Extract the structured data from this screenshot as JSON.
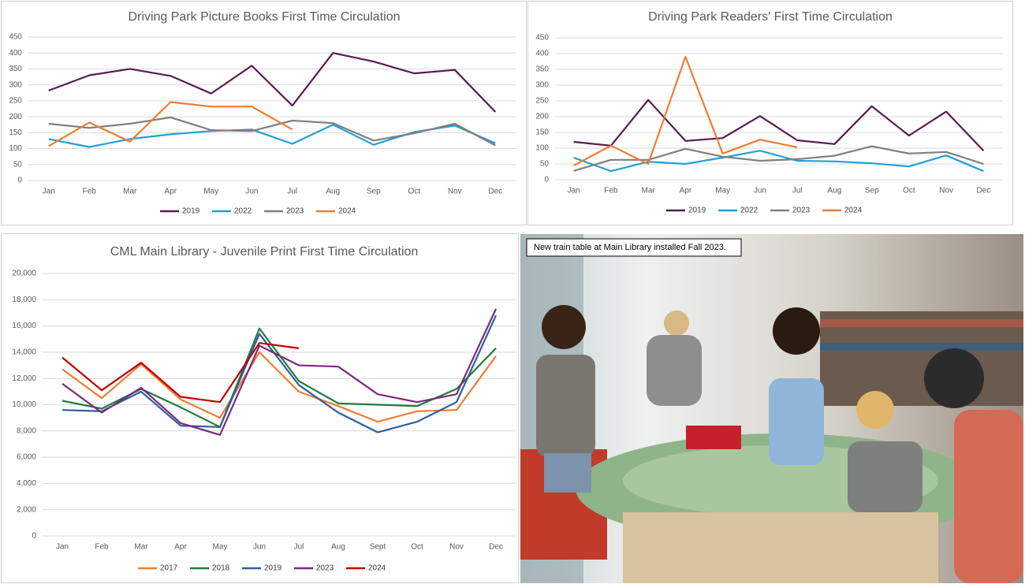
{
  "chart_data": [
    {
      "type": "line",
      "title": "Driving Park Picture Books First Time Circulation",
      "categories": [
        "Jan",
        "Feb",
        "Mar",
        "Apr",
        "May",
        "Jun",
        "Jul",
        "Aug",
        "Sep",
        "Oct",
        "Nov",
        "Dec"
      ],
      "ylim": [
        0,
        450
      ],
      "yticks": [
        0,
        50,
        100,
        150,
        200,
        250,
        300,
        350,
        400,
        450
      ],
      "grid": true,
      "legend": "bottom",
      "series": [
        {
          "name": "2019",
          "color": "#5b1a50",
          "values": [
            282,
            330,
            350,
            328,
            273,
            360,
            235,
            400,
            373,
            336,
            347,
            215
          ]
        },
        {
          "name": "2022",
          "color": "#1fa0d8",
          "values": [
            130,
            105,
            130,
            145,
            155,
            160,
            115,
            175,
            112,
            152,
            172,
            117
          ]
        },
        {
          "name": "2023",
          "color": "#7f7f7f",
          "values": [
            178,
            165,
            178,
            198,
            158,
            155,
            188,
            180,
            125,
            148,
            178,
            110
          ]
        },
        {
          "name": "2024",
          "color": "#ed7d31",
          "values": [
            108,
            182,
            122,
            246,
            232,
            232,
            160,
            null,
            null,
            null,
            null,
            null
          ]
        }
      ]
    },
    {
      "type": "line",
      "title": "Driving Park Readers' First Time Circulation",
      "categories": [
        "Jan",
        "Feb",
        "Mar",
        "Apr",
        "May",
        "Jun",
        "Jul",
        "Aug",
        "Sep",
        "Oct",
        "Nov",
        "Dec"
      ],
      "ylim": [
        0,
        450
      ],
      "yticks": [
        0,
        50,
        100,
        150,
        200,
        250,
        300,
        350,
        400,
        450
      ],
      "grid": true,
      "legend": "bottom",
      "series": [
        {
          "name": "2019",
          "color": "#5b1a50",
          "values": [
            120,
            108,
            253,
            123,
            132,
            202,
            125,
            113,
            233,
            140,
            216,
            92
          ]
        },
        {
          "name": "2022",
          "color": "#1fa0d8",
          "values": [
            70,
            27,
            57,
            50,
            70,
            92,
            60,
            58,
            52,
            42,
            77,
            27
          ]
        },
        {
          "name": "2023",
          "color": "#7f7f7f",
          "values": [
            28,
            63,
            63,
            98,
            73,
            60,
            65,
            76,
            106,
            83,
            88,
            50
          ]
        },
        {
          "name": "2024",
          "color": "#ed7d31",
          "values": [
            45,
            108,
            50,
            390,
            83,
            127,
            103,
            null,
            null,
            null,
            null,
            null
          ]
        }
      ]
    },
    {
      "type": "line",
      "title": "CML Main Library -   Juvenile Print First Time Circulation",
      "categories": [
        "Jan",
        "Feb",
        "Mar",
        "Apr",
        "May",
        "Jun",
        "Jul",
        "Aug",
        "Sept",
        "Oct",
        "Nov",
        "Dec"
      ],
      "ylim": [
        0,
        20000
      ],
      "yticks": [
        0,
        {
          "value": 2000,
          "label": "2,000"
        },
        {
          "value": 4000,
          "label": "4,000"
        },
        {
          "value": 6000,
          "label": "6,000"
        },
        {
          "value": 8000,
          "label": "8,000"
        },
        {
          "value": 10000,
          "label": "10,000"
        },
        {
          "value": 12000,
          "label": "12,000"
        },
        {
          "value": 14000,
          "label": "14,000"
        },
        {
          "value": 16000,
          "label": "16,000"
        },
        {
          "value": 18000,
          "label": "18,000"
        },
        {
          "value": 20000,
          "label": "20,000"
        }
      ],
      "grid": true,
      "legend": "bottom",
      "series": [
        {
          "name": "2017",
          "color": "#ed7d31",
          "values": [
            12700,
            10500,
            13100,
            10400,
            9000,
            14000,
            11000,
            9900,
            8700,
            9500,
            9600,
            13700
          ]
        },
        {
          "name": "2018",
          "color": "#217a3a",
          "values": [
            10300,
            9700,
            11200,
            9800,
            8300,
            15800,
            11800,
            10100,
            10000,
            9900,
            11200,
            14300
          ]
        },
        {
          "name": "2019",
          "color": "#2e5e9e",
          "values": [
            9600,
            9500,
            11000,
            8400,
            8300,
            15400,
            11500,
            9400,
            7900,
            8700,
            10200,
            16800
          ]
        },
        {
          "name": "2023",
          "color": "#7b2a7e",
          "values": [
            11600,
            9400,
            11300,
            8600,
            7700,
            14500,
            13000,
            12900,
            10800,
            10200,
            10800,
            17300
          ]
        },
        {
          "name": "2024",
          "color": "#c00000",
          "values": [
            13600,
            11100,
            13200,
            10600,
            10200,
            14700,
            14300,
            null,
            null,
            null,
            null,
            null
          ]
        }
      ]
    }
  ],
  "photo": {
    "caption": "New train table at Main Library installed Fall 2023."
  }
}
